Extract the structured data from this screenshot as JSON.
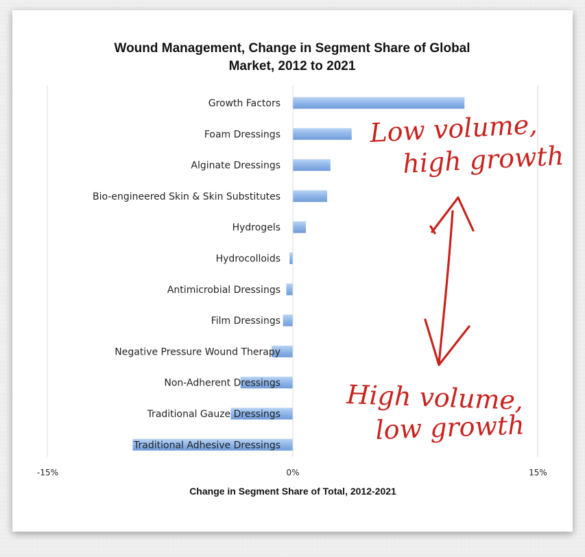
{
  "chart_data": {
    "type": "bar",
    "orientation": "horizontal",
    "title": [
      "Wound Management, Change in Segment Share of Global",
      "Market, 2012 to 2021"
    ],
    "xlabel": "Change in Segment Share of Total, 2012-2021",
    "ylabel": "",
    "xlim": [
      -15,
      15
    ],
    "xticks": [
      {
        "value": -15,
        "label": "-15%"
      },
      {
        "value": 0,
        "label": "0%"
      },
      {
        "value": 15,
        "label": "15%"
      }
    ],
    "categories": [
      "Growth Factors",
      "Foam Dressings",
      "Alginate Dressings",
      "Bio-engineered Skin & Skin Substitutes",
      "Hydrogels",
      "Hydrocolloids",
      "Antimicrobial Dressings",
      "Film Dressings",
      "Negative Pressure Wound Therapy",
      "Non-Adherent Dressings",
      "Traditional Gauze Dressings",
      "Traditional Adhesive Dressings"
    ],
    "values": [
      10.5,
      3.6,
      2.3,
      2.1,
      0.8,
      -0.2,
      -0.4,
      -0.6,
      -1.3,
      -3.2,
      -3.8,
      -9.8
    ],
    "bar_color": "#8fb6e9",
    "grid": false,
    "annotations": {
      "top": [
        "Low volume,",
        "high growth"
      ],
      "bottom": [
        "High volume,",
        "low growth"
      ],
      "color": "#c8231e"
    }
  }
}
